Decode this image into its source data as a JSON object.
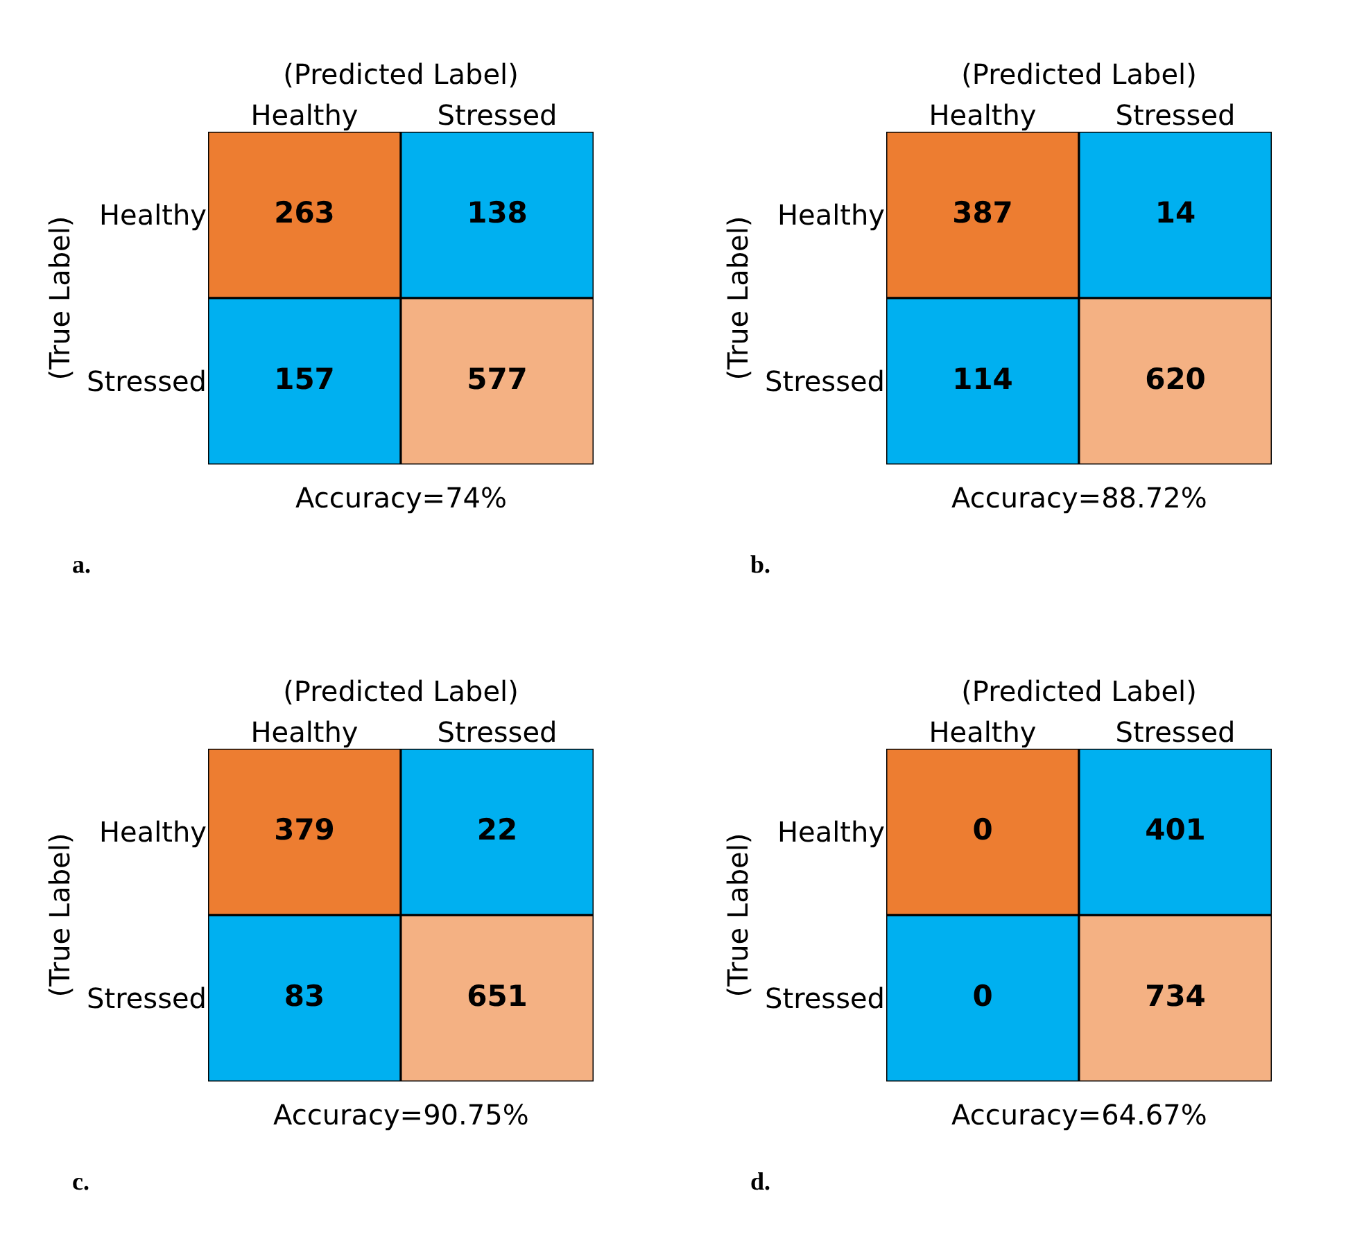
{
  "chart_data": [
    {
      "type": "heatmap",
      "xlabel": "(Predicted Label)",
      "ylabel": "(True Label)",
      "categories": [
        "Healthy",
        "Stressed"
      ],
      "y_categories": [
        "Healthy",
        "Stressed"
      ],
      "cells": [
        [
          263,
          138
        ],
        [
          157,
          577
        ]
      ],
      "colors": [
        [
          "#ed7d31",
          "#00b0f0"
        ],
        [
          "#00b0f0",
          "#f4b183"
        ]
      ],
      "data_labels": true,
      "annotations": [
        "Accuracy=74%",
        "a."
      ]
    },
    {
      "type": "heatmap",
      "xlabel": "(Predicted Label)",
      "ylabel": "(True Label)",
      "categories": [
        "Healthy",
        "Stressed"
      ],
      "y_categories": [
        "Healthy",
        "Stressed"
      ],
      "cells": [
        [
          387,
          14
        ],
        [
          114,
          620
        ]
      ],
      "colors": [
        [
          "#ed7d31",
          "#00b0f0"
        ],
        [
          "#00b0f0",
          "#f4b183"
        ]
      ],
      "data_labels": true,
      "annotations": [
        "Accuracy=88.72%",
        "b."
      ]
    },
    {
      "type": "heatmap",
      "xlabel": "(Predicted Label)",
      "ylabel": "(True Label)",
      "categories": [
        "Healthy",
        "Stressed"
      ],
      "y_categories": [
        "Healthy",
        "Stressed"
      ],
      "cells": [
        [
          379,
          22
        ],
        [
          83,
          651
        ]
      ],
      "colors": [
        [
          "#ed7d31",
          "#00b0f0"
        ],
        [
          "#00b0f0",
          "#f4b183"
        ]
      ],
      "data_labels": true,
      "annotations": [
        "Accuracy=90.75%",
        "c."
      ]
    },
    {
      "type": "heatmap",
      "xlabel": "(Predicted Label)",
      "ylabel": "(True Label)",
      "categories": [
        "Healthy",
        "Stressed"
      ],
      "y_categories": [
        "Healthy",
        "Stressed"
      ],
      "cells": [
        [
          0,
          401
        ],
        [
          0,
          734
        ]
      ],
      "colors": [
        [
          "#ed7d31",
          "#00b0f0"
        ],
        [
          "#00b0f0",
          "#f4b183"
        ]
      ],
      "data_labels": true,
      "annotations": [
        "Accuracy=64.67%",
        "d."
      ]
    }
  ]
}
